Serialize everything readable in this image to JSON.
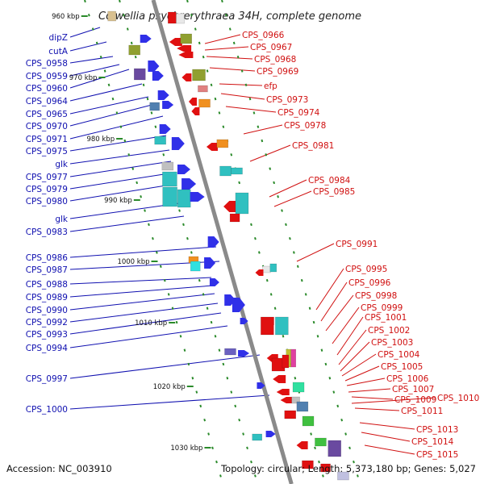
{
  "title": "Colwellia psychrerythraea 34H, complete genome",
  "footer": {
    "accession": "Accession: NC_003910",
    "topology": "Topology: circular; Length: 5,373,180 bp; Genes: 5,027"
  },
  "colors": {
    "backbone": "#8a8a8a",
    "kbp_dash": "#2a8a2a",
    "label_left": "#1010b0",
    "label_right": "#d01010"
  },
  "kbp_ticks": [
    "960 kbp",
    "970 kbp",
    "980 kbp",
    "990 kbp",
    "1000 kbp",
    "1010 kbp",
    "1020 kbp",
    "1030 kbp"
  ],
  "left_labels": [
    "dipZ",
    "cutA",
    "CPS_0958",
    "CPS_0959",
    "CPS_0960",
    "CPS_0964",
    "CPS_0965",
    "CPS_0970",
    "CPS_0971",
    "CPS_0975",
    "glk",
    "CPS_0977",
    "CPS_0979",
    "CPS_0980",
    "glk",
    "CPS_0983",
    "CPS_0986",
    "CPS_0987",
    "CPS_0988",
    "CPS_0989",
    "CPS_0990",
    "CPS_0992",
    "CPS_0993",
    "CPS_0994",
    "CPS_0997",
    "CPS_1000"
  ],
  "right_labels": [
    "CPS_0966",
    "CPS_0967",
    "CPS_0968",
    "CPS_0969",
    "efp",
    "CPS_0973",
    "CPS_0974",
    "CPS_0978",
    "CPS_0981",
    "CPS_0984",
    "CPS_0985",
    "CPS_0991",
    "CPS_0995",
    "CPS_0996",
    "CPS_0998",
    "CPS_0999",
    "CPS_1001",
    "CPS_1002",
    "CPS_1003",
    "CPS_1004",
    "CPS_1005",
    "CPS_1006",
    "CPS_1007",
    "CPS_1009",
    "CPS_1010",
    "CPS_1011",
    "CPS_1013",
    "CPS_1014",
    "CPS_1015"
  ]
}
